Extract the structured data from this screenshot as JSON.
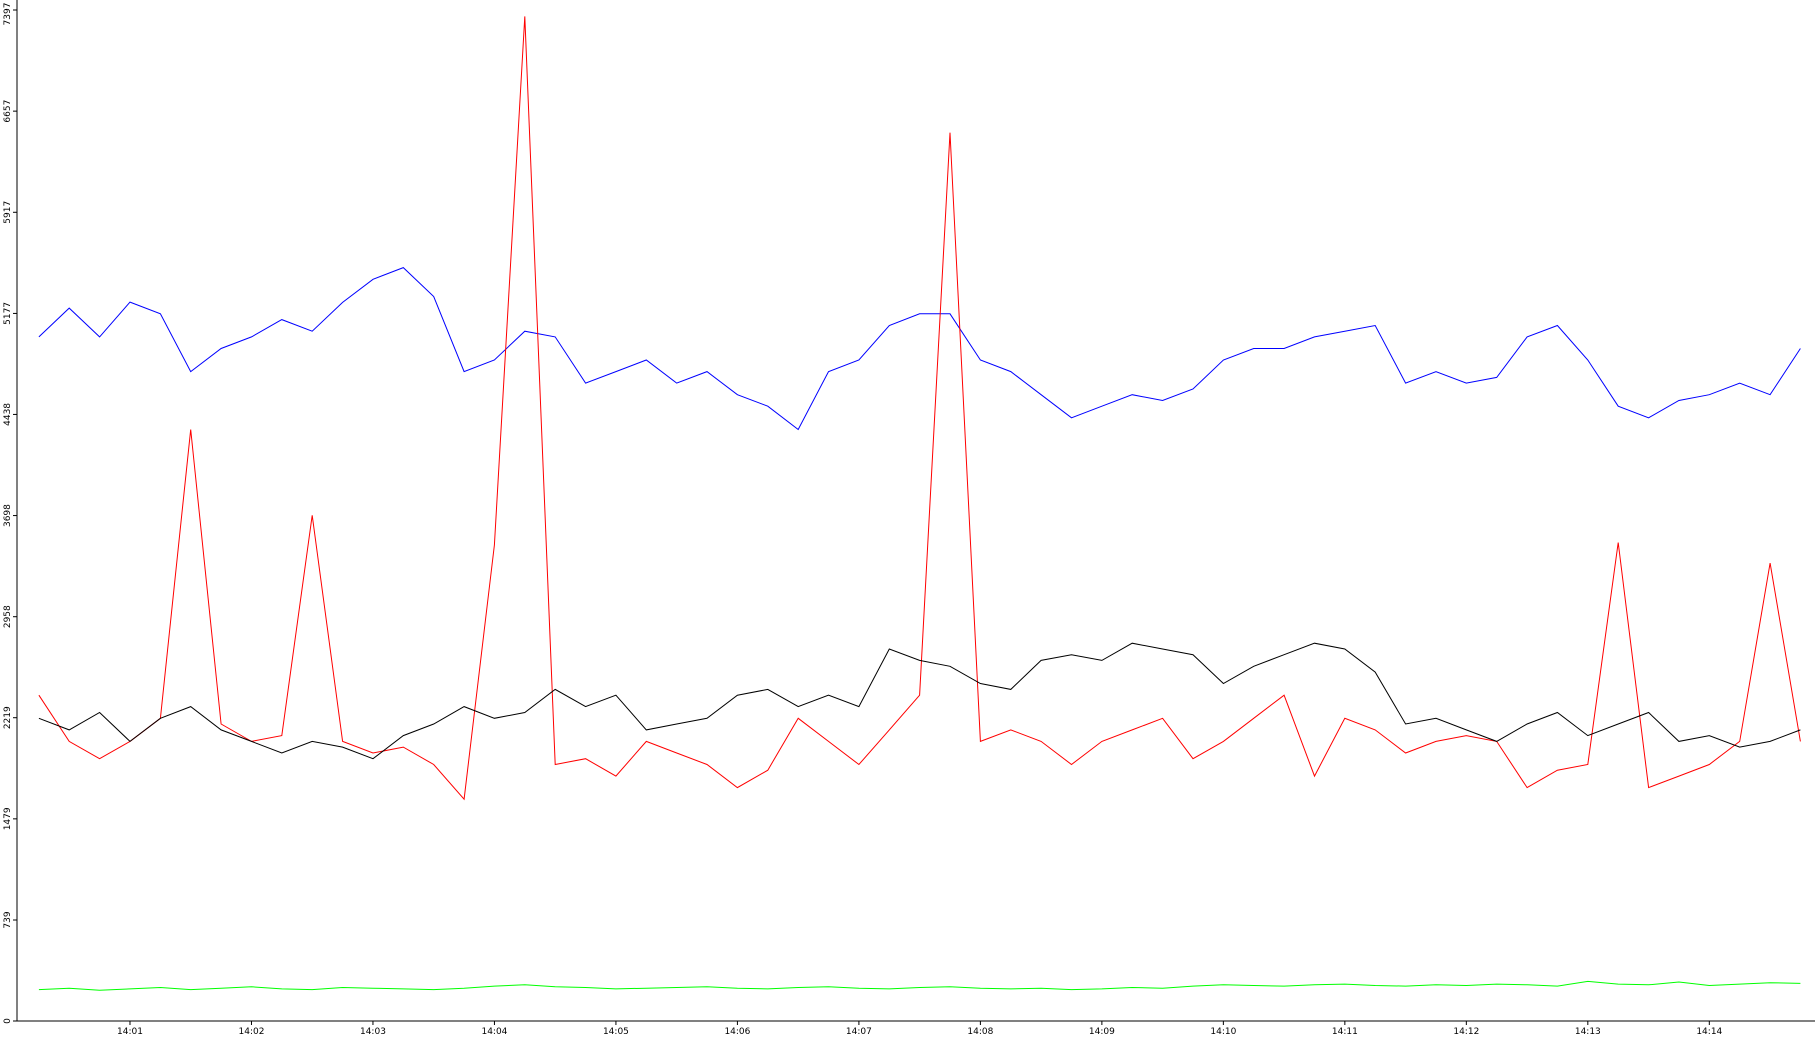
{
  "chart_data": {
    "type": "line",
    "x": [
      0.25,
      0.5,
      0.75,
      1,
      1.25,
      1.5,
      1.75,
      2,
      2.25,
      2.5,
      2.75,
      3,
      3.25,
      3.5,
      3.75,
      4,
      4.25,
      4.5,
      4.75,
      5,
      5.25,
      5.5,
      5.75,
      6,
      6.25,
      6.5,
      6.75,
      7,
      7.25,
      7.5,
      7.75,
      8,
      8.25,
      8.5,
      8.75,
      9,
      9.25,
      9.5,
      9.75,
      10,
      10.25,
      10.5,
      10.75,
      11,
      11.25,
      11.5,
      11.75,
      12,
      12.25,
      12.5,
      12.75,
      13,
      13.25,
      13.5,
      13.75,
      14,
      14.25,
      14.5,
      14.75
    ],
    "series": [
      {
        "color": "#0000ff",
        "values": [
          5005,
          5216,
          5005,
          5260,
          5174,
          4751,
          4920,
          5005,
          5132,
          5047,
          5258,
          5427,
          5512,
          5301,
          4751,
          4836,
          5047,
          5005,
          4667,
          4751,
          4836,
          4667,
          4751,
          4582,
          4498,
          4328,
          4751,
          4836,
          5089,
          5174,
          5174,
          4836,
          4751,
          4582,
          4413,
          4498,
          4582,
          4540,
          4624,
          4836,
          4920,
          4920,
          5005,
          5047,
          5089,
          4667,
          4751,
          4667,
          4709,
          5005,
          5089,
          4836,
          4498,
          4413,
          4540,
          4582,
          4667,
          4582,
          4920
        ]
      },
      {
        "color": "#ff0000",
        "values": [
          2384,
          2046,
          1919,
          2046,
          2215,
          4328,
          2173,
          2046,
          2088,
          3700,
          2046,
          1961,
          2004,
          1877,
          1623,
          3483,
          7350,
          1877,
          1919,
          1792,
          2046,
          1961,
          1877,
          1708,
          1835,
          2215,
          2046,
          1877,
          2130,
          2384,
          6500,
          2046,
          2130,
          2046,
          1877,
          2046,
          2130,
          2215,
          1919,
          2046,
          2215,
          2384,
          1792,
          2215,
          2130,
          1961,
          2046,
          2088,
          2046,
          1708,
          1835,
          1877,
          3500,
          1708,
          1792,
          1877,
          2046,
          3350,
          2046
        ]
      },
      {
        "color": "#000000",
        "values": [
          2215,
          2130,
          2257,
          2046,
          2215,
          2300,
          2130,
          2046,
          1961,
          2046,
          2004,
          1919,
          2088,
          2173,
          2300,
          2215,
          2257,
          2426,
          2300,
          2384,
          2130,
          2173,
          2215,
          2384,
          2426,
          2300,
          2384,
          2300,
          2722,
          2638,
          2595,
          2469,
          2426,
          2638,
          2680,
          2638,
          2764,
          2722,
          2680,
          2469,
          2595,
          2680,
          2764,
          2722,
          2553,
          2173,
          2215,
          2130,
          2046,
          2173,
          2257,
          2088,
          2173,
          2257,
          2046,
          2088,
          2004,
          2046,
          2130
        ]
      },
      {
        "color": "#00ff00",
        "values": [
          230,
          240,
          225,
          235,
          245,
          230,
          240,
          250,
          235,
          230,
          245,
          240,
          235,
          230,
          240,
          255,
          265,
          250,
          245,
          235,
          240,
          245,
          250,
          240,
          235,
          245,
          250,
          240,
          235,
          245,
          250,
          240,
          235,
          240,
          230,
          235,
          245,
          240,
          255,
          265,
          260,
          255,
          265,
          270,
          260,
          255,
          265,
          260,
          270,
          265,
          255,
          290,
          270,
          265,
          285,
          260,
          270,
          280,
          275
        ]
      }
    ],
    "xlim": [
      0.07,
      14.87
    ],
    "xticks": [
      {
        "value": 1,
        "label": "14:01"
      },
      {
        "value": 2,
        "label": "14:02"
      },
      {
        "value": 3,
        "label": "14:03"
      },
      {
        "value": 4,
        "label": "14:04"
      },
      {
        "value": 5,
        "label": "14:05"
      },
      {
        "value": 6,
        "label": "14:06"
      },
      {
        "value": 7,
        "label": "14:07"
      },
      {
        "value": 8,
        "label": "14:08"
      },
      {
        "value": 9,
        "label": "14:09"
      },
      {
        "value": 10,
        "label": "14:10"
      },
      {
        "value": 11,
        "label": "14:11"
      },
      {
        "value": 12,
        "label": "14:12"
      },
      {
        "value": 13,
        "label": "14:13"
      },
      {
        "value": 14,
        "label": "14:14"
      }
    ],
    "ylim": [
      0,
      7397
    ],
    "yticks": [
      0,
      739,
      1479,
      2219,
      2958,
      3698,
      4438,
      5177,
      5917,
      6657,
      7397
    ],
    "grid": false
  }
}
